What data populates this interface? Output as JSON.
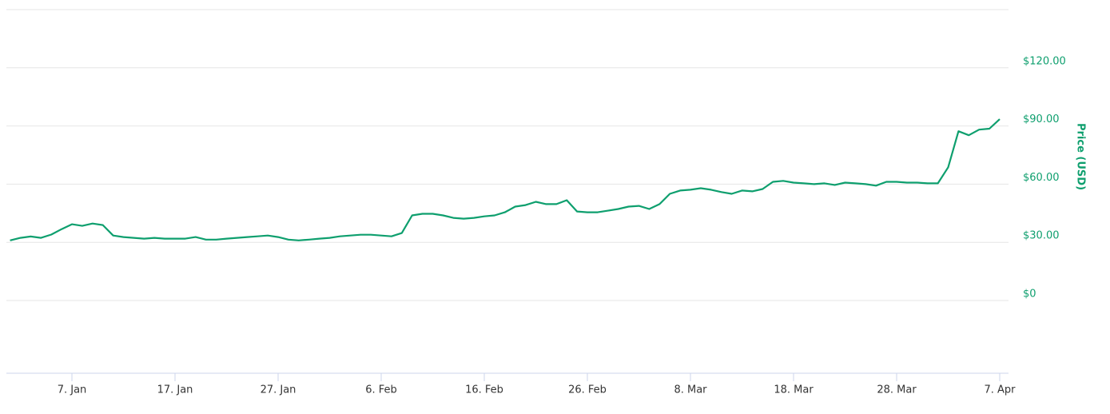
{
  "chart_data": {
    "type": "line",
    "y2_label": "Price (USD)",
    "categories": [
      null,
      null,
      null,
      null,
      null,
      null,
      "7. Jan",
      null,
      null,
      null,
      null,
      null,
      null,
      null,
      null,
      null,
      "17. Jan",
      null,
      null,
      null,
      null,
      null,
      null,
      null,
      null,
      null,
      "27. Jan",
      null,
      null,
      null,
      null,
      null,
      null,
      null,
      null,
      null,
      "6. Feb",
      null,
      null,
      null,
      null,
      null,
      null,
      null,
      null,
      null,
      "16. Feb",
      null,
      null,
      null,
      null,
      null,
      null,
      null,
      null,
      null,
      "26. Feb",
      null,
      null,
      null,
      null,
      null,
      null,
      null,
      null,
      null,
      "8. Mar",
      null,
      null,
      null,
      null,
      null,
      null,
      null,
      null,
      null,
      "18. Mar",
      null,
      null,
      null,
      null,
      null,
      null,
      null,
      null,
      null,
      "28. Mar",
      null,
      null,
      null,
      null,
      null,
      null,
      null,
      null,
      null,
      "7. Apr"
    ],
    "values": [
      31,
      32.3,
      33,
      32.3,
      34,
      36.8,
      39.3,
      38.5,
      39.7,
      38.9,
      33.5,
      32.7,
      32.3,
      31.9,
      32.3,
      31.9,
      31.9,
      31.9,
      32.7,
      31.4,
      31.4,
      31.9,
      32.3,
      32.7,
      33.1,
      33.5,
      32.7,
      31.4,
      31,
      31.4,
      31.9,
      32.3,
      33.1,
      33.5,
      33.9,
      33.9,
      33.5,
      33.1,
      34.8,
      43.9,
      44.7,
      44.7,
      43.9,
      42.6,
      42.2,
      42.6,
      43.4,
      43.9,
      45.5,
      48.4,
      49.2,
      50.9,
      49.7,
      49.7,
      51.7,
      45.9,
      45.5,
      45.5,
      46.3,
      47.2,
      48.4,
      48.8,
      47.2,
      49.7,
      55,
      56.7,
      57.1,
      57.9,
      57.1,
      55.9,
      55,
      56.7,
      56.3,
      57.5,
      61.2,
      61.7,
      60.8,
      60.4,
      60,
      60.4,
      59.6,
      60.8,
      60.4,
      60,
      59.2,
      61.2,
      61.2,
      60.8,
      60.8,
      60.4,
      60.4,
      68.7,
      87.3,
      85.2,
      88.1,
      88.6,
      93.5
    ],
    "color": "#0e9f6e",
    "ylim": [
      -37.5,
      150
    ],
    "yticks": [
      {
        "value": 0,
        "label": "$0"
      },
      {
        "value": 30,
        "label": "$30.00"
      },
      {
        "value": 60,
        "label": "$60.00"
      },
      {
        "value": 90,
        "label": "$90.00"
      },
      {
        "value": 120,
        "label": "$120.00"
      }
    ],
    "grid": true
  }
}
